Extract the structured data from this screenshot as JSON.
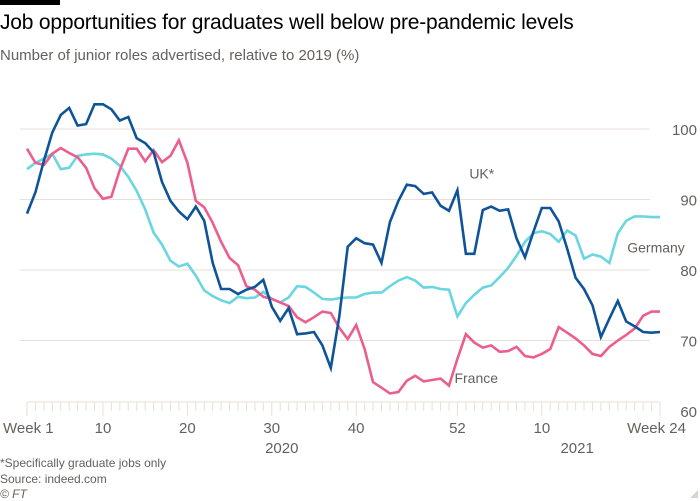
{
  "header": {
    "title": "Job opportunities for graduates well below pre-pandemic levels",
    "subtitle": "Number of junior roles advertised, relative to 2019 (%)"
  },
  "footer": {
    "note": "*Specifically graduate jobs only",
    "source": "Source: indeed.com",
    "copyright": "© FT"
  },
  "colors": {
    "uk": "#0f5499",
    "germany": "#6ad6e0",
    "france": "#eb5e8d",
    "grid": "#e9dfd6",
    "axis_text": "#66605c"
  },
  "chart_data": {
    "type": "line",
    "title": "Job opportunities for graduates well below pre-pandemic levels",
    "subtitle": "Number of junior roles advertised, relative to 2019 (%)",
    "xlabel": "",
    "ylabel": "",
    "ylim": [
      60,
      100
    ],
    "yticks": [
      60,
      70,
      80,
      90,
      100
    ],
    "y_axis_side": "right",
    "grid": true,
    "x_count": 76,
    "x_tick_labels": [
      {
        "index": 0,
        "label": "Week 1"
      },
      {
        "index": 9,
        "label": "10"
      },
      {
        "index": 19,
        "label": "20"
      },
      {
        "index": 29,
        "label": "30"
      },
      {
        "index": 39,
        "label": "40"
      },
      {
        "index": 51,
        "label": "52"
      },
      {
        "index": 61,
        "label": "10"
      },
      {
        "index": 75,
        "label": "Week 24"
      }
    ],
    "year_labels": [
      {
        "index": 29,
        "label": "2020"
      },
      {
        "index": 64,
        "label": "2021"
      }
    ],
    "series": [
      {
        "name": "UK*",
        "key": "uk",
        "label_at": {
          "index": 53,
          "value": 93
        },
        "values": [
          88,
          91,
          95.5,
          99.5,
          102,
          103,
          100.5,
          100.7,
          103.5,
          103.5,
          102.8,
          101.2,
          101.7,
          98.7,
          98,
          96.7,
          92.5,
          89.8,
          88.3,
          87.2,
          89,
          87,
          81,
          77.3,
          77.3,
          76.6,
          77.2,
          77.6,
          78.6,
          74.8,
          72.8,
          74.6,
          70.9,
          71,
          71.2,
          69.3,
          66.1,
          73.4,
          83.3,
          84.5,
          83.8,
          83.6,
          81,
          86.8,
          89.8,
          92.1,
          91.9,
          90.8,
          91,
          89.1,
          88.4,
          91.3,
          82.3,
          82.3,
          88.5,
          89,
          88.4,
          88.6,
          84.5,
          81.8,
          85.4,
          88.8,
          88.8,
          86.9,
          83,
          78.9,
          77.3,
          75,
          70.5,
          73.1,
          75.6,
          72.7,
          72,
          71.2,
          71.1,
          71.2
        ]
      },
      {
        "name": "Germany",
        "key": "germany",
        "label_at": {
          "index": 71,
          "value": 82.5
        },
        "values": [
          94.3,
          95.2,
          95.8,
          96.5,
          94.3,
          94.5,
          96.2,
          96.4,
          96.5,
          96.4,
          95.8,
          94.8,
          93.2,
          91.2,
          88.6,
          85.3,
          83.6,
          81.3,
          80.5,
          80.9,
          79.2,
          77.1,
          76.3,
          75.7,
          75.3,
          76.2,
          76,
          76.1,
          76.9,
          75.9,
          75.4,
          76.1,
          77.7,
          77.6,
          76.8,
          75.9,
          75.8,
          76,
          76.1,
          76.1,
          76.6,
          76.8,
          76.8,
          77.7,
          78.5,
          79,
          78.5,
          77.5,
          77.6,
          77.3,
          77.2,
          73.4,
          75.3,
          76.5,
          77.5,
          77.8,
          79,
          80.3,
          82,
          84,
          85.2,
          85.5,
          85.1,
          84,
          85.6,
          84.9,
          81.6,
          82.2,
          81.9,
          81,
          85.2,
          87,
          87.6,
          87.6,
          87.5,
          87.5
        ]
      },
      {
        "name": "France",
        "key": "france",
        "label_at": {
          "index": 51,
          "value": 64
        },
        "values": [
          97.2,
          95.2,
          94.9,
          96.5,
          97.3,
          96.6,
          96,
          94.5,
          91.6,
          90.1,
          90.4,
          94.2,
          97.2,
          97.2,
          95.4,
          97,
          95.3,
          96.2,
          98.4,
          95.2,
          89.8,
          88.9,
          86.7,
          84,
          81.7,
          80.7,
          77.7,
          77.2,
          76.2,
          75.9,
          75.4,
          74.9,
          73.3,
          72.6,
          73.3,
          74.1,
          73.9,
          71.8,
          70.2,
          72.2,
          68.8,
          64.1,
          63.3,
          62.5,
          62.7,
          64.3,
          65,
          64.2,
          64.4,
          64.6,
          63.6,
          67.4,
          70.9,
          69.7,
          69,
          69.3,
          68.4,
          68.5,
          69.1,
          67.8,
          67.6,
          68.1,
          68.8,
          71.9,
          71.1,
          70.3,
          69.3,
          68.1,
          67.8,
          69.1,
          70,
          70.8,
          71.7,
          73.5,
          74.1,
          74.1
        ]
      }
    ]
  }
}
